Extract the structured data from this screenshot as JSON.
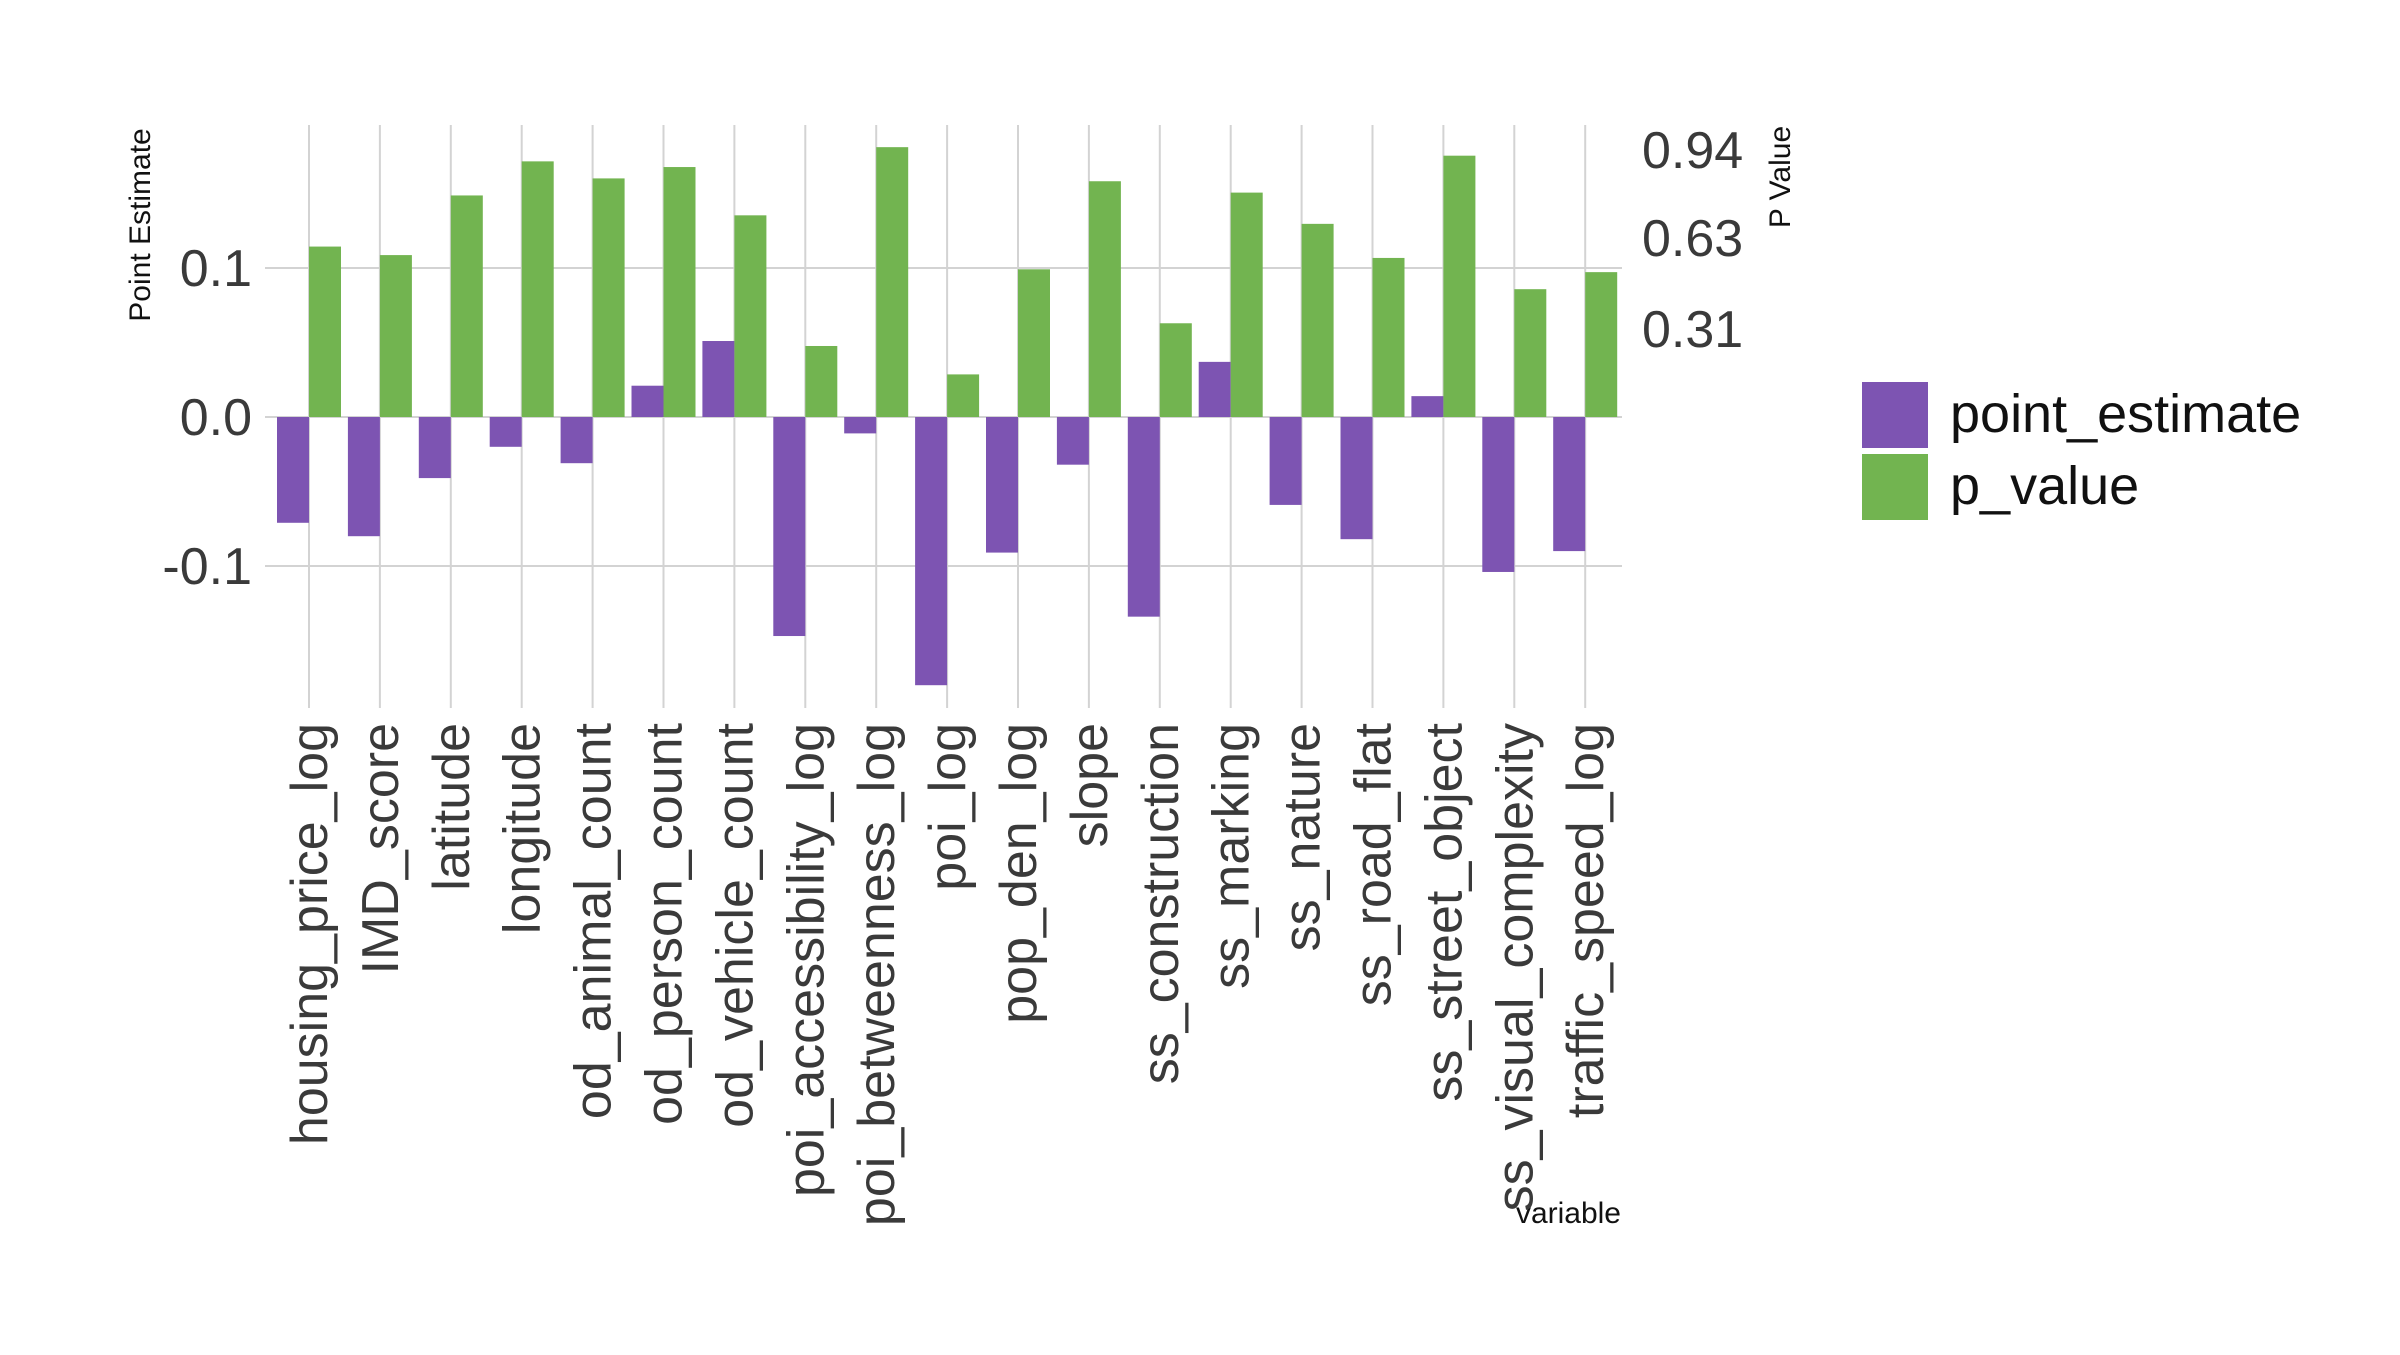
{
  "chart_data": {
    "type": "bar",
    "xlabel": "variable",
    "ylabel": "Point Estimate",
    "y2label": "P Value",
    "ylim": [
      -0.19,
      0.2
    ],
    "yticks": [
      "-0.1",
      "0.0",
      "0.1"
    ],
    "y2lim": [
      0.0,
      1.08
    ],
    "y2ticks": [
      "0.31",
      "0.63",
      "0.94"
    ],
    "grid": true,
    "legend_position": "right",
    "categories": [
      "housing_price_log",
      "IMD_score",
      "latitude",
      "longitude",
      "od_animal_count",
      "od_person_count",
      "od_vehicle_count",
      "poi_accessibility_log",
      "poi_betweenness_log",
      "poi_log",
      "pop_den_log",
      "slope",
      "ss_construction",
      "ss_marking",
      "ss_nature",
      "ss_road_flat",
      "ss_street_object",
      "ss_visual_complexity",
      "traffic_speed_log"
    ],
    "series": [
      {
        "name": "point_estimate",
        "axis": "left",
        "color": "#7d54b2",
        "values": [
          -0.071,
          -0.08,
          -0.041,
          -0.02,
          -0.031,
          0.021,
          0.051,
          -0.147,
          -0.011,
          -0.18,
          -0.091,
          -0.032,
          -0.134,
          0.037,
          -0.059,
          -0.082,
          0.014,
          -0.104,
          -0.09
        ]
      },
      {
        "name": "p_value",
        "axis": "right",
        "color": "#72b450",
        "values": [
          0.6,
          0.57,
          0.78,
          0.9,
          0.84,
          0.88,
          0.71,
          0.25,
          0.95,
          0.15,
          0.52,
          0.83,
          0.33,
          0.79,
          0.68,
          0.56,
          0.92,
          0.45,
          0.51
        ]
      }
    ]
  }
}
